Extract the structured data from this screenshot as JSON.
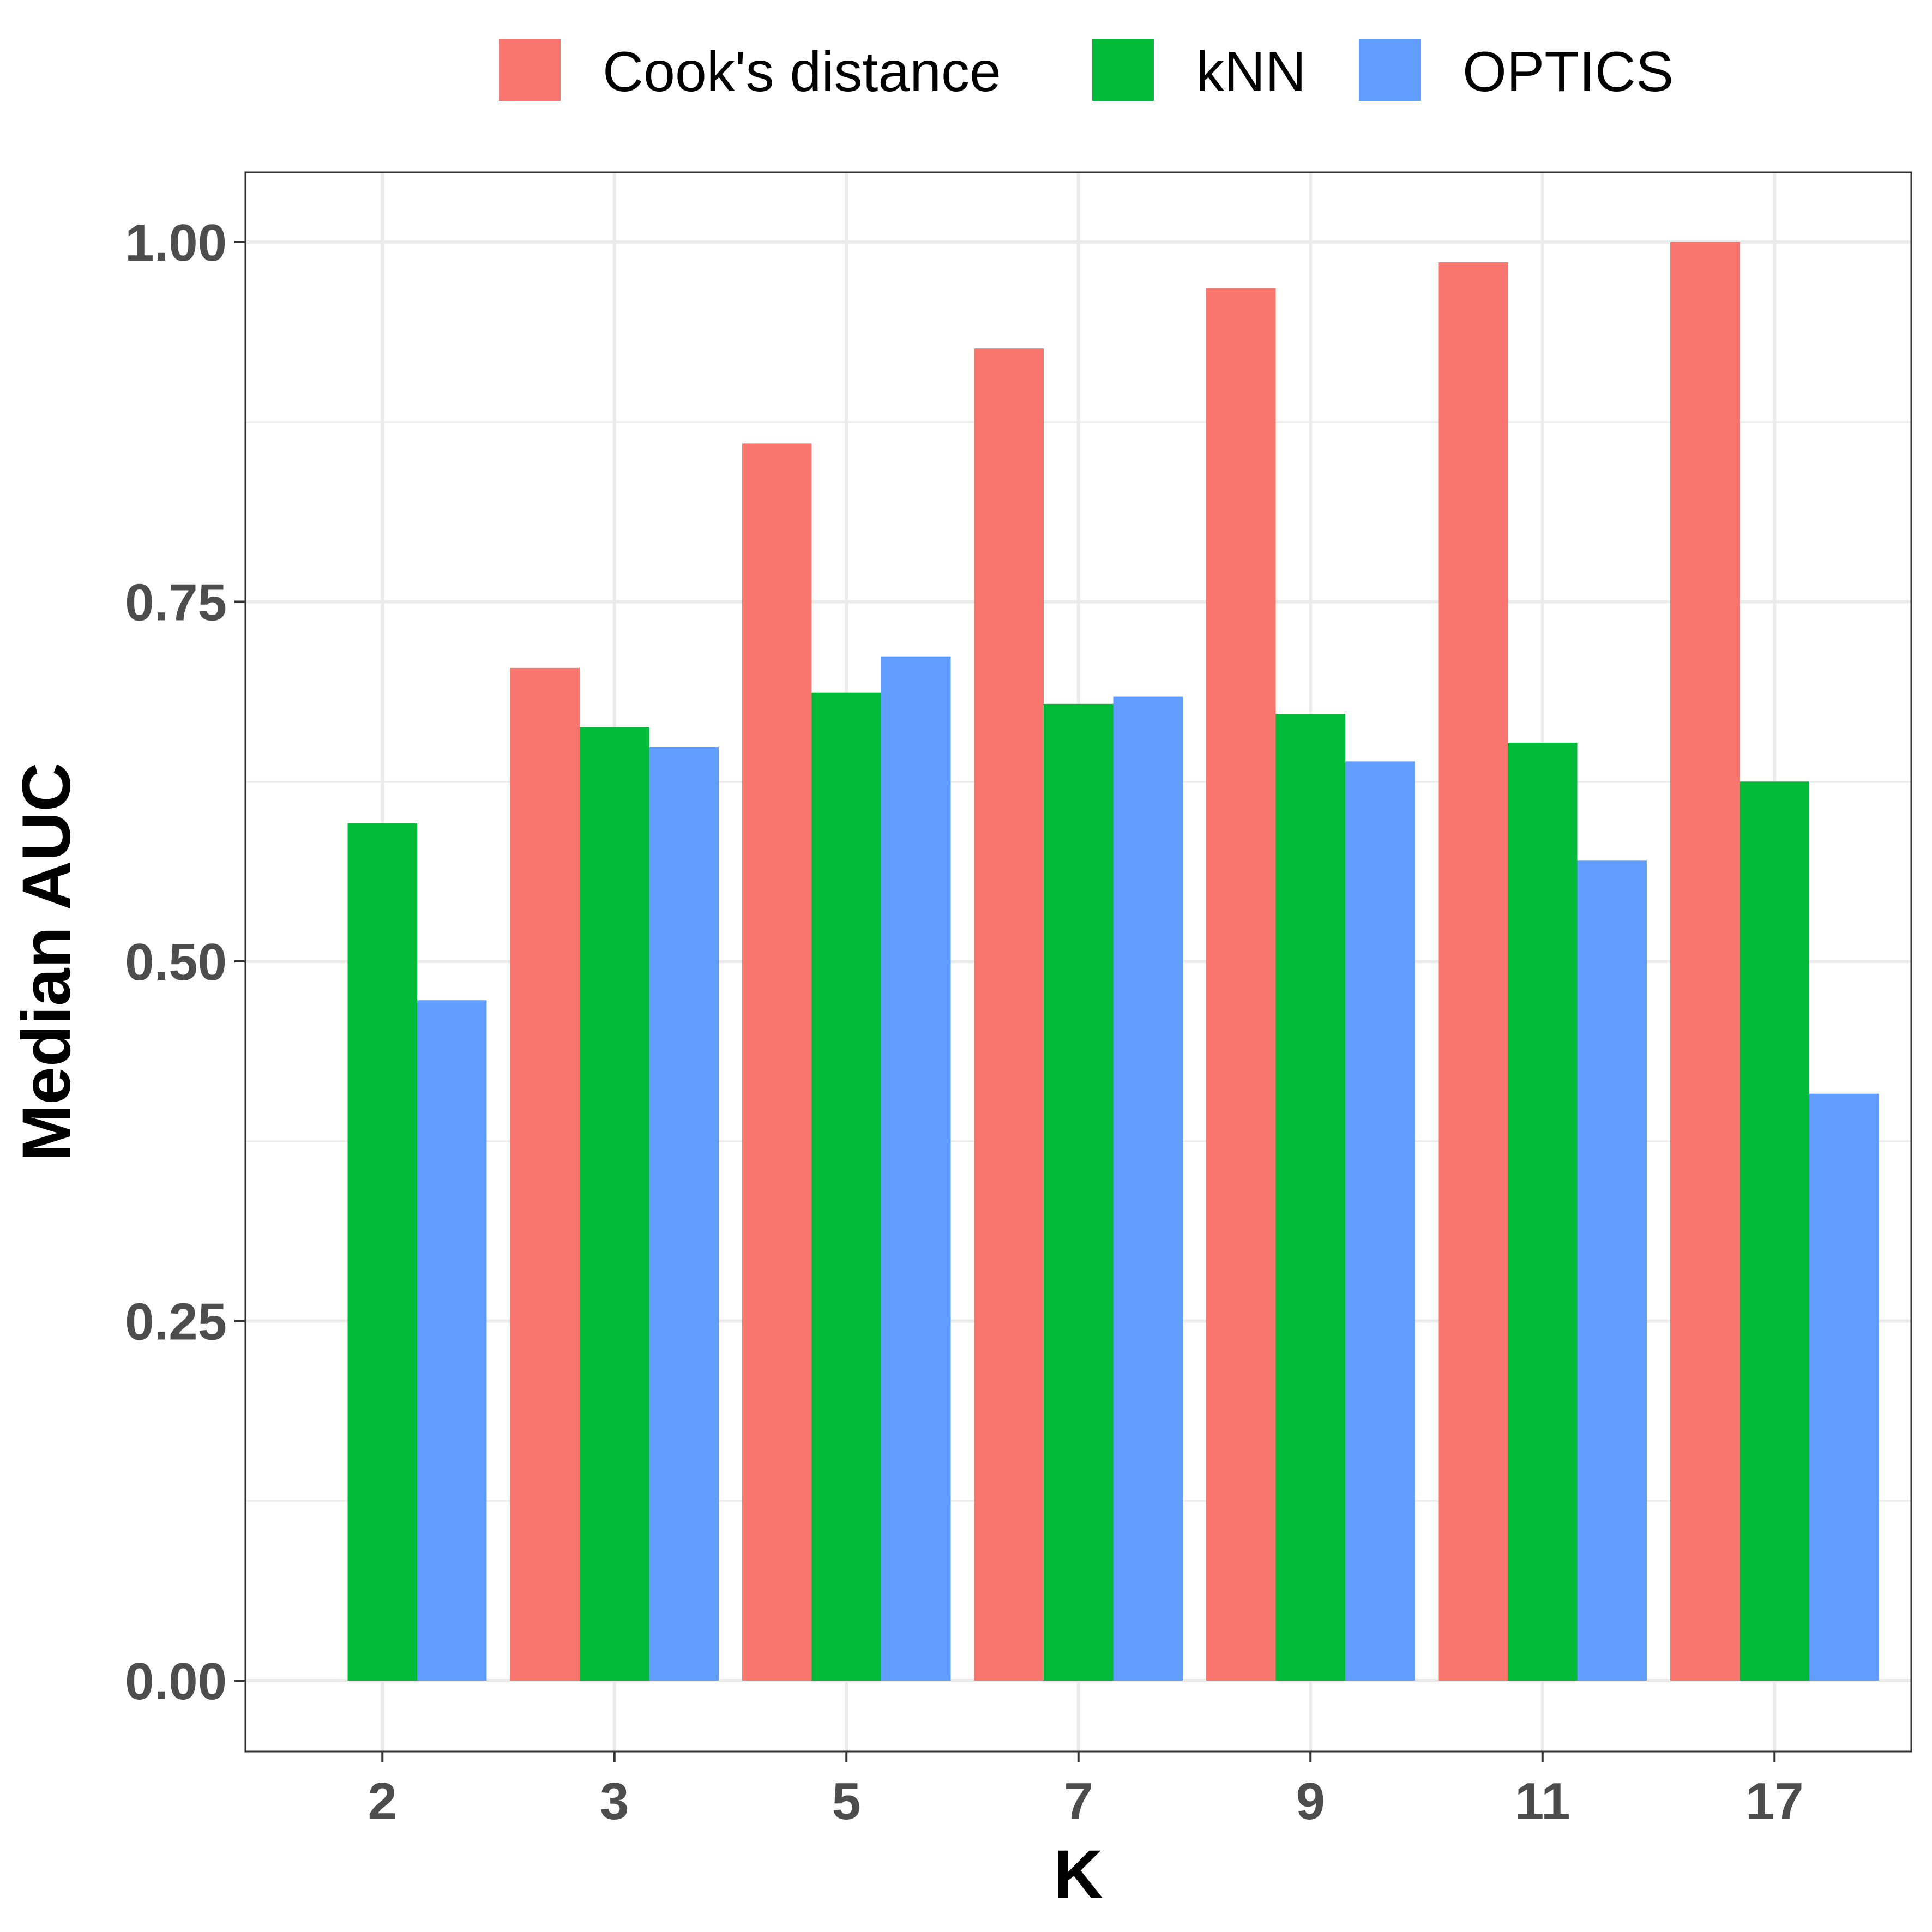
{
  "chart_data": {
    "type": "bar",
    "title": "",
    "xlabel": "K",
    "ylabel": "Median AUC",
    "categories": [
      "2",
      "3",
      "5",
      "7",
      "9",
      "11",
      "17"
    ],
    "series": [
      {
        "name": "Cook's distance",
        "color": "#F8766D",
        "values": [
          null,
          0.704,
          0.86,
          0.926,
          0.968,
          0.986,
          1.0
        ]
      },
      {
        "name": "kNN",
        "color": "#00BA38",
        "values": [
          0.596,
          0.663,
          0.687,
          0.679,
          0.672,
          0.652,
          0.625
        ]
      },
      {
        "name": "OPTICS",
        "color": "#619CFF",
        "values": [
          0.473,
          0.649,
          0.712,
          0.684,
          0.639,
          0.57,
          0.408
        ]
      }
    ],
    "ylim": [
      -0.05,
      1.05
    ],
    "y_ticks": [
      "0.00",
      "0.25",
      "0.50",
      "0.75",
      "1.00"
    ],
    "grid": true,
    "legend_position": "top"
  }
}
